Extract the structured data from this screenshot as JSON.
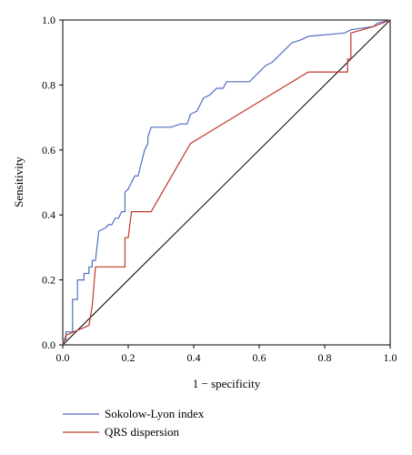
{
  "chart_data": {
    "type": "line",
    "title": "",
    "xlabel": "1 − specificity",
    "ylabel": "Sensitivity",
    "xlim": [
      0.0,
      1.0
    ],
    "ylim": [
      0.0,
      1.0
    ],
    "x_ticks": [
      "0.0",
      "0.2",
      "0.4",
      "0.6",
      "0.8",
      "1.0"
    ],
    "y_ticks": [
      "0.0",
      "0.2",
      "0.4",
      "0.6",
      "0.8",
      "1.0"
    ],
    "grid": false,
    "legend_position": "bottom-left",
    "reference_line": {
      "from": [
        0,
        0
      ],
      "to": [
        1,
        1
      ],
      "color": "#000000"
    },
    "series": [
      {
        "name": "Sokolow-Lyon index",
        "color": "#4f6fc4",
        "points": [
          [
            0.0,
            0.0
          ],
          [
            0.0,
            0.015
          ],
          [
            0.01,
            0.015
          ],
          [
            0.01,
            0.04
          ],
          [
            0.03,
            0.04
          ],
          [
            0.03,
            0.14
          ],
          [
            0.045,
            0.14
          ],
          [
            0.045,
            0.2
          ],
          [
            0.065,
            0.2
          ],
          [
            0.065,
            0.22
          ],
          [
            0.08,
            0.22
          ],
          [
            0.08,
            0.24
          ],
          [
            0.09,
            0.24
          ],
          [
            0.09,
            0.26
          ],
          [
            0.1,
            0.26
          ],
          [
            0.11,
            0.35
          ],
          [
            0.13,
            0.36
          ],
          [
            0.14,
            0.37
          ],
          [
            0.15,
            0.37
          ],
          [
            0.16,
            0.39
          ],
          [
            0.17,
            0.39
          ],
          [
            0.18,
            0.41
          ],
          [
            0.19,
            0.41
          ],
          [
            0.19,
            0.47
          ],
          [
            0.2,
            0.48
          ],
          [
            0.21,
            0.5
          ],
          [
            0.22,
            0.52
          ],
          [
            0.23,
            0.52
          ],
          [
            0.24,
            0.56
          ],
          [
            0.25,
            0.6
          ],
          [
            0.26,
            0.62
          ],
          [
            0.26,
            0.64
          ],
          [
            0.27,
            0.67
          ],
          [
            0.33,
            0.67
          ],
          [
            0.36,
            0.68
          ],
          [
            0.38,
            0.68
          ],
          [
            0.39,
            0.71
          ],
          [
            0.41,
            0.72
          ],
          [
            0.42,
            0.74
          ],
          [
            0.43,
            0.76
          ],
          [
            0.45,
            0.77
          ],
          [
            0.47,
            0.79
          ],
          [
            0.49,
            0.79
          ],
          [
            0.5,
            0.81
          ],
          [
            0.57,
            0.81
          ],
          [
            0.6,
            0.84
          ],
          [
            0.62,
            0.86
          ],
          [
            0.64,
            0.87
          ],
          [
            0.65,
            0.88
          ],
          [
            0.67,
            0.9
          ],
          [
            0.7,
            0.93
          ],
          [
            0.73,
            0.94
          ],
          [
            0.75,
            0.95
          ],
          [
            0.86,
            0.96
          ],
          [
            0.88,
            0.97
          ],
          [
            0.95,
            0.98
          ],
          [
            0.96,
            0.99
          ],
          [
            1.0,
            1.0
          ]
        ]
      },
      {
        "name": "QRS dispersion",
        "color": "#c0392b",
        "points": [
          [
            0.0,
            0.0
          ],
          [
            0.01,
            0.03
          ],
          [
            0.08,
            0.06
          ],
          [
            0.09,
            0.12
          ],
          [
            0.1,
            0.24
          ],
          [
            0.19,
            0.24
          ],
          [
            0.19,
            0.33
          ],
          [
            0.2,
            0.33
          ],
          [
            0.21,
            0.41
          ],
          [
            0.27,
            0.41
          ],
          [
            0.39,
            0.62
          ],
          [
            0.75,
            0.84
          ],
          [
            0.87,
            0.84
          ],
          [
            0.87,
            0.88
          ],
          [
            0.88,
            0.88
          ],
          [
            0.88,
            0.96
          ],
          [
            0.95,
            0.98
          ],
          [
            1.0,
            1.0
          ]
        ]
      }
    ]
  }
}
